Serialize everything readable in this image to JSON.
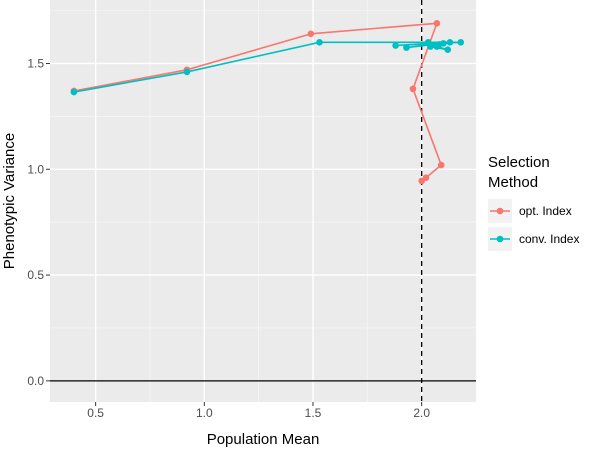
{
  "chart_data": {
    "type": "line",
    "title": "",
    "xlabel": "Population Mean",
    "ylabel": "Phenotypic Variance",
    "xlim": [
      0.29,
      2.25
    ],
    "ylim": [
      -0.1,
      1.8
    ],
    "x_ticks": [
      0.5,
      1.0,
      1.5,
      2.0
    ],
    "x_tick_labels": [
      "0.5",
      "1.0",
      "1.5",
      "2.0"
    ],
    "y_ticks": [
      0.0,
      0.5,
      1.0,
      1.5
    ],
    "y_tick_labels": [
      "0.0",
      "0.5",
      "1.0",
      "1.5"
    ],
    "reference_lines": {
      "vertical_dashed_x": 2.0,
      "horizontal_solid_y": 0.0
    },
    "grid": true,
    "legend": {
      "title": "Selection\nMethod",
      "title_lines": [
        "Selection",
        "Method"
      ],
      "position": "right"
    },
    "series": [
      {
        "name": "opt. Index",
        "color": "#F8766D",
        "x": [
          0.4,
          0.92,
          1.49,
          2.07,
          1.96,
          2.09,
          2.02,
          2.0
        ],
        "y": [
          1.37,
          1.47,
          1.64,
          1.69,
          1.38,
          1.02,
          0.96,
          0.945
        ]
      },
      {
        "name": "conv. Index",
        "color": "#00BFC4",
        "x": [
          0.4,
          0.92,
          1.53,
          2.03,
          2.18,
          1.88,
          2.13,
          1.93,
          2.1,
          2.07,
          2.12,
          2.04,
          2.08
        ],
        "y": [
          1.365,
          1.46,
          1.6,
          1.6,
          1.6,
          1.585,
          1.6,
          1.575,
          1.595,
          1.58,
          1.565,
          1.58,
          1.59
        ]
      }
    ]
  }
}
